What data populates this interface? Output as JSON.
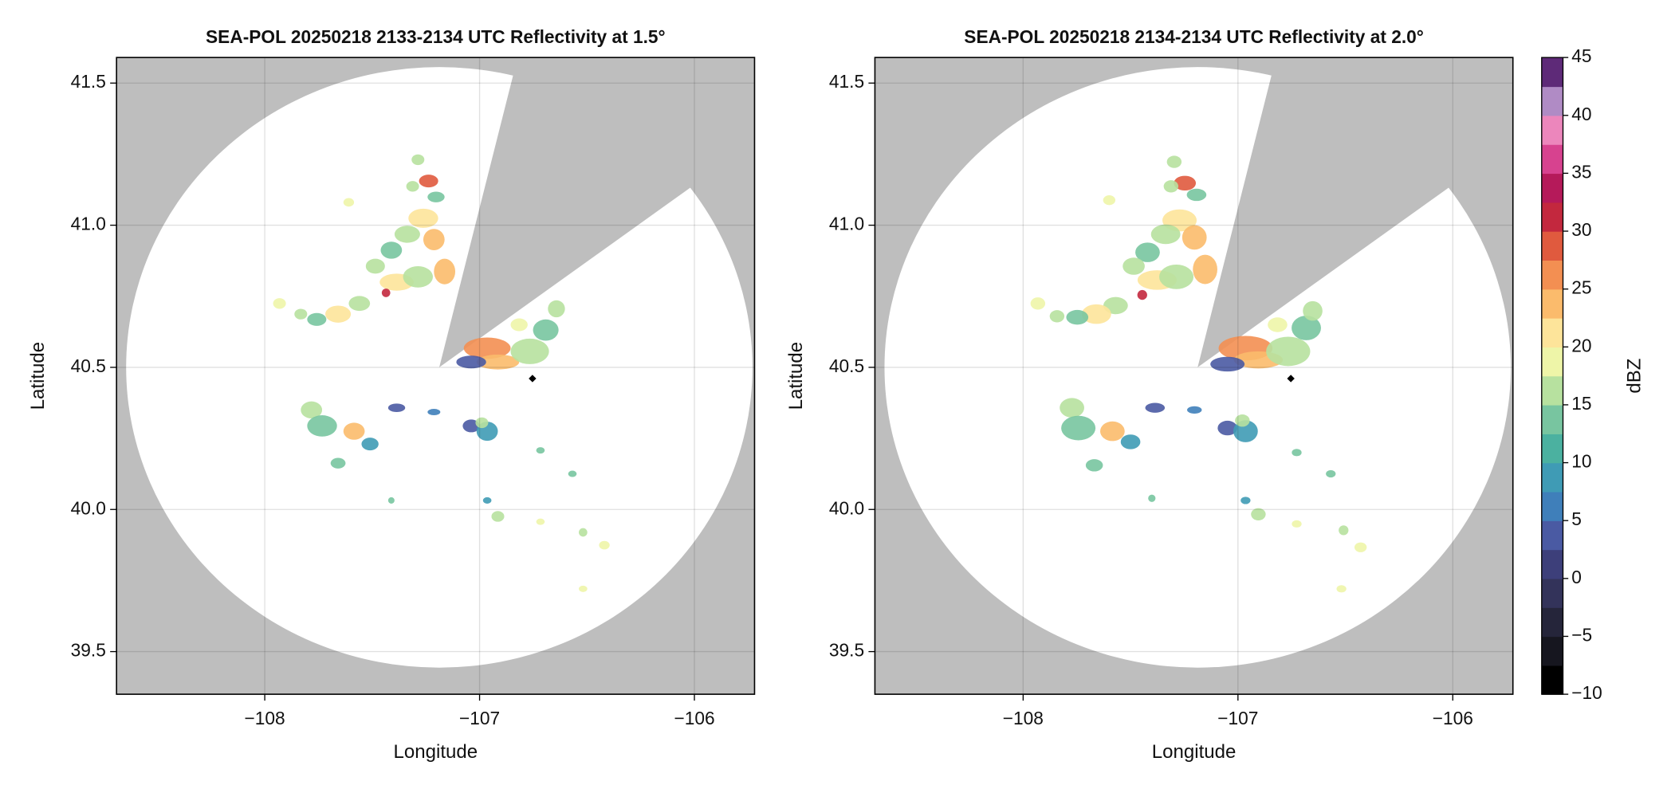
{
  "chart_data": [
    {
      "type": "radar",
      "title": "SEA-POL 20250218 2133-2134 UTC Reflectivity at 1.5°",
      "xlabel": "Longitude",
      "ylabel": "Latitude",
      "xlim": [
        -108.69,
        -105.72
      ],
      "ylim": [
        39.35,
        41.59
      ],
      "xticks": [
        {
          "value": -108,
          "label": "−108"
        },
        {
          "value": -107,
          "label": "−107"
        },
        {
          "value": -106,
          "label": "−106"
        }
      ],
      "yticks": [
        39.5,
        {
          "value": 40,
          "label": "40.0"
        },
        40.5,
        {
          "value": 41,
          "label": "41.0"
        },
        41.5
      ],
      "grid": true
    },
    {
      "type": "radar",
      "title": "SEA-POL 20250218 2134-2134 UTC Reflectivity at 2.0°",
      "xlabel": "Longitude",
      "ylabel": "Latitude",
      "xlim": [
        -108.69,
        -105.72
      ],
      "ylim": [
        39.35,
        41.59
      ],
      "xticks": [
        {
          "value": -108,
          "label": "−108"
        },
        {
          "value": -107,
          "label": "−107"
        },
        {
          "value": -106,
          "label": "−106"
        }
      ],
      "yticks": [
        39.5,
        {
          "value": 40,
          "label": "40.0"
        },
        40.5,
        {
          "value": 41,
          "label": "41.0"
        },
        41.5
      ],
      "grid": true,
      "colorbar": {
        "label": "dBZ",
        "lim": [
          -10,
          45
        ],
        "ticks": [
          {
            "value": -10,
            "label": "−10"
          },
          {
            "value": -5,
            "label": "−5"
          },
          0,
          5,
          10,
          15,
          20,
          25,
          30,
          35,
          40,
          45
        ],
        "colors": [
          "#000000",
          "#16161f",
          "#25253a",
          "#33335a",
          "#3d3f7a",
          "#4a5aa3",
          "#3f7fba",
          "#3f9bb5",
          "#4bb1a0",
          "#78c5a0",
          "#b7e19f",
          "#eef5a8",
          "#fde49a",
          "#fbbb6c",
          "#f38f52",
          "#e05a3e",
          "#c3283e",
          "#b51a5a",
          "#d7428f",
          "#ec86bc",
          "#b08bc5",
          "#5e2a78"
        ]
      }
    }
  ]
}
